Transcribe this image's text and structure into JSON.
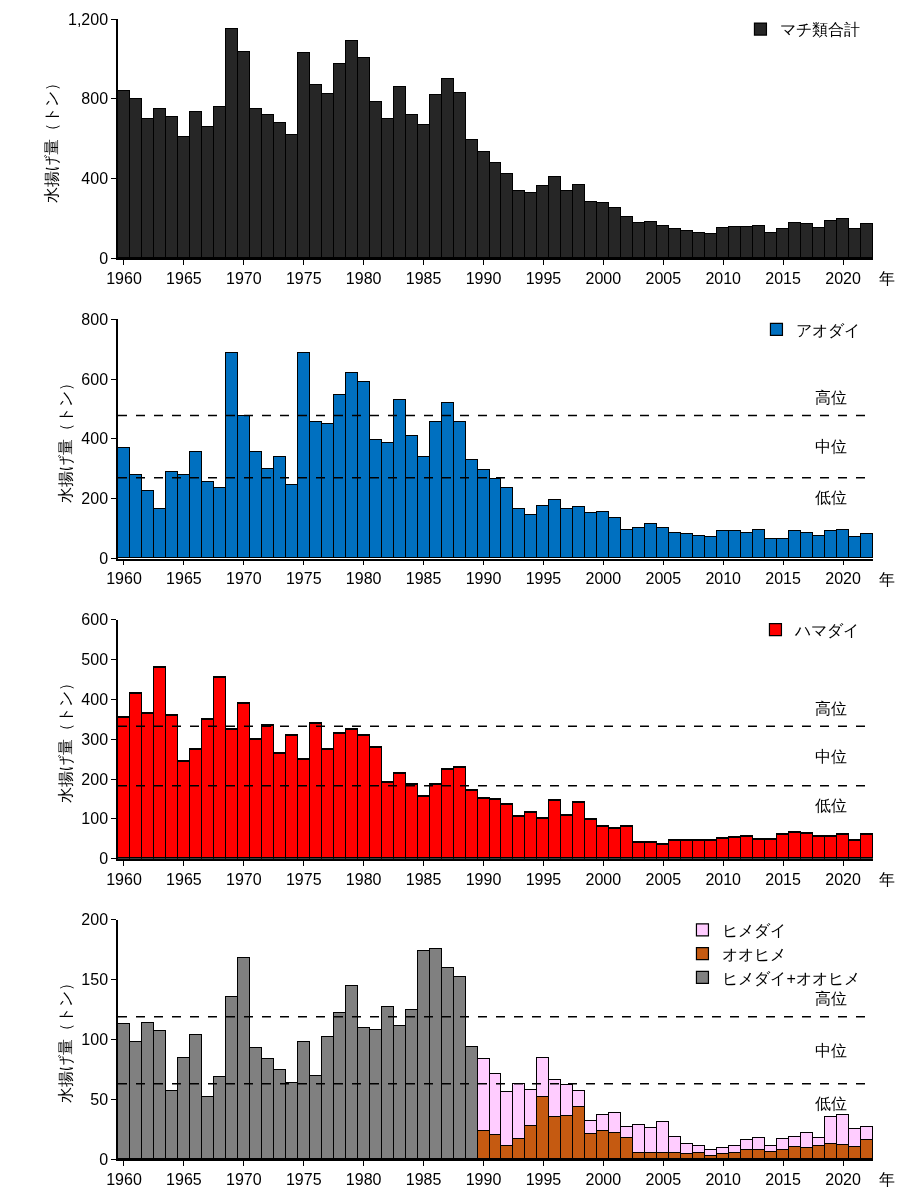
{
  "chart_data": [
    {
      "type": "bar",
      "ylabel": "水揚げ量（トン）",
      "xlabel": "年",
      "legend": "top right",
      "x": [
        1960,
        1961,
        1962,
        1963,
        1964,
        1965,
        1966,
        1967,
        1968,
        1969,
        1970,
        1971,
        1972,
        1973,
        1974,
        1975,
        1976,
        1977,
        1978,
        1979,
        1980,
        1981,
        1982,
        1983,
        1984,
        1985,
        1986,
        1987,
        1988,
        1989,
        1990,
        1991,
        1992,
        1993,
        1994,
        1995,
        1996,
        1997,
        1998,
        1999,
        2000,
        2001,
        2002,
        2003,
        2004,
        2005,
        2006,
        2007,
        2008,
        2009,
        2010,
        2011,
        2012,
        2013,
        2014,
        2015,
        2016,
        2017,
        2018,
        2019,
        2020,
        2021,
        2022
      ],
      "xlim": [
        1959.5,
        2022.5
      ],
      "xticks": [
        1960,
        1965,
        1970,
        1975,
        1980,
        1985,
        1990,
        1995,
        2000,
        2005,
        2010,
        2015,
        2020
      ],
      "ylim": [
        0,
        1200
      ],
      "yticks": [
        0,
        400,
        800,
        {
          "value": 1200,
          "label": "1,200"
        }
      ],
      "series": [
        {
          "name": "マチ類合計",
          "color": "#262626",
          "values": [
            840,
            800,
            700,
            750,
            710,
            610,
            735,
            660,
            760,
            1150,
            1035,
            750,
            720,
            680,
            620,
            1030,
            870,
            825,
            975,
            1090,
            1005,
            785,
            700,
            860,
            720,
            670,
            820,
            900,
            830,
            595,
            535,
            480,
            425,
            335,
            325,
            360,
            410,
            335,
            365,
            280,
            275,
            250,
            205,
            175,
            180,
            160,
            145,
            135,
            125,
            120,
            150,
            155,
            155,
            160,
            125,
            145,
            175,
            170,
            150,
            185,
            195,
            145,
            170
          ]
        }
      ]
    },
    {
      "type": "bar",
      "ylabel": "水揚げ量（トン）",
      "xlabel": "年",
      "legend": "top right",
      "x": [
        1960,
        1961,
        1962,
        1963,
        1964,
        1965,
        1966,
        1967,
        1968,
        1969,
        1970,
        1971,
        1972,
        1973,
        1974,
        1975,
        1976,
        1977,
        1978,
        1979,
        1980,
        1981,
        1982,
        1983,
        1984,
        1985,
        1986,
        1987,
        1988,
        1989,
        1990,
        1991,
        1992,
        1993,
        1994,
        1995,
        1996,
        1997,
        1998,
        1999,
        2000,
        2001,
        2002,
        2003,
        2004,
        2005,
        2006,
        2007,
        2008,
        2009,
        2010,
        2011,
        2012,
        2013,
        2014,
        2015,
        2016,
        2017,
        2018,
        2019,
        2020,
        2021,
        2022
      ],
      "xlim": [
        1959.5,
        2022.5
      ],
      "xticks": [
        1960,
        1965,
        1970,
        1975,
        1980,
        1985,
        1990,
        1995,
        2000,
        2005,
        2010,
        2015,
        2020
      ],
      "ylim": [
        0,
        800
      ],
      "yticks": [
        0,
        200,
        400,
        600,
        800
      ],
      "series": [
        {
          "name": "アオダイ",
          "color": "#0070c0",
          "values": [
            370,
            280,
            225,
            165,
            290,
            280,
            355,
            255,
            235,
            685,
            475,
            355,
            300,
            340,
            245,
            685,
            455,
            450,
            545,
            620,
            590,
            395,
            385,
            530,
            410,
            340,
            455,
            520,
            455,
            330,
            295,
            265,
            235,
            165,
            145,
            175,
            195,
            165,
            170,
            150,
            155,
            135,
            95,
            100,
            115,
            100,
            85,
            80,
            75,
            70,
            90,
            90,
            85,
            95,
            65,
            65,
            90,
            85,
            75,
            90,
            95,
            70,
            80
          ]
        }
      ],
      "ref_lines": [
        {
          "axis": "y",
          "value": 478,
          "color": "#000000",
          "line_style": "dashed"
        },
        {
          "axis": "y",
          "value": 270,
          "color": "#000000",
          "line_style": "dashed"
        }
      ],
      "annotations": [
        "高位",
        "中位",
        "低位"
      ]
    },
    {
      "type": "bar",
      "ylabel": "水揚げ量（トン）",
      "xlabel": "年",
      "legend": "top right",
      "x": [
        1960,
        1961,
        1962,
        1963,
        1964,
        1965,
        1966,
        1967,
        1968,
        1969,
        1970,
        1971,
        1972,
        1973,
        1974,
        1975,
        1976,
        1977,
        1978,
        1979,
        1980,
        1981,
        1982,
        1983,
        1984,
        1985,
        1986,
        1987,
        1988,
        1989,
        1990,
        1991,
        1992,
        1993,
        1994,
        1995,
        1996,
        1997,
        1998,
        1999,
        2000,
        2001,
        2002,
        2003,
        2004,
        2005,
        2006,
        2007,
        2008,
        2009,
        2010,
        2011,
        2012,
        2013,
        2014,
        2015,
        2016,
        2017,
        2018,
        2019,
        2020,
        2021,
        2022
      ],
      "xlim": [
        1959.5,
        2022.5
      ],
      "xticks": [
        1960,
        1965,
        1970,
        1975,
        1980,
        1985,
        1990,
        1995,
        2000,
        2005,
        2010,
        2015,
        2020
      ],
      "ylim": [
        0,
        600
      ],
      "yticks": [
        0,
        100,
        200,
        300,
        400,
        500,
        600
      ],
      "series": [
        {
          "name": "ハマダイ",
          "color": "#ff0000",
          "values": [
            355,
            415,
            365,
            480,
            360,
            245,
            275,
            350,
            455,
            325,
            390,
            300,
            335,
            265,
            310,
            250,
            340,
            275,
            315,
            325,
            310,
            280,
            190,
            215,
            185,
            155,
            185,
            225,
            228,
            170,
            150,
            148,
            135,
            105,
            115,
            100,
            145,
            108,
            140,
            98,
            82,
            77,
            82,
            42,
            42,
            35,
            45,
            45,
            45,
            47,
            52,
            54,
            55,
            48,
            48,
            60,
            66,
            64,
            57,
            55,
            60,
            47,
            60
          ]
        }
      ],
      "ref_lines": [
        {
          "axis": "y",
          "value": 332,
          "color": "#000000",
          "line_style": "dashed"
        },
        {
          "axis": "y",
          "value": 183,
          "color": "#000000",
          "line_style": "dashed"
        }
      ],
      "annotations": [
        "高位",
        "中位",
        "低位"
      ]
    },
    {
      "type": "bar",
      "stacked": true,
      "ylabel": "水揚げ量（トン）",
      "xlabel": "年",
      "legend": "top right",
      "x": [
        1960,
        1961,
        1962,
        1963,
        1964,
        1965,
        1966,
        1967,
        1968,
        1969,
        1970,
        1971,
        1972,
        1973,
        1974,
        1975,
        1976,
        1977,
        1978,
        1979,
        1980,
        1981,
        1982,
        1983,
        1984,
        1985,
        1986,
        1987,
        1988,
        1989,
        1990,
        1991,
        1992,
        1993,
        1994,
        1995,
        1996,
        1997,
        1998,
        1999,
        2000,
        2001,
        2002,
        2003,
        2004,
        2005,
        2006,
        2007,
        2008,
        2009,
        2010,
        2011,
        2012,
        2013,
        2014,
        2015,
        2016,
        2017,
        2018,
        2019,
        2020,
        2021,
        2022
      ],
      "xlim": [
        1959.5,
        2022.5
      ],
      "xticks": [
        1960,
        1965,
        1970,
        1975,
        1980,
        1985,
        1990,
        1995,
        2000,
        2005,
        2010,
        2015,
        2020
      ],
      "ylim": [
        0,
        200
      ],
      "yticks": [
        0,
        50,
        100,
        150,
        200
      ],
      "series": [
        {
          "name": "ヒメダイ+オオヒメ",
          "color": "#808080",
          "values": [
            113,
            98,
            114,
            107,
            57,
            85,
            104,
            52,
            69,
            136,
            168,
            93,
            84,
            75,
            64,
            98,
            70,
            102,
            122,
            145,
            110,
            108,
            127,
            111,
            125,
            174,
            176,
            160,
            152,
            94,
            null,
            null,
            null,
            null,
            null,
            null,
            null,
            null,
            null,
            null,
            null,
            null,
            null,
            null,
            null,
            null,
            null,
            null,
            null,
            null,
            null,
            null,
            null,
            null,
            null,
            null,
            null,
            null,
            null,
            null,
            null,
            null,
            null
          ]
        },
        {
          "name": "オオヒメ",
          "color": "#c55a11",
          "values": [
            null,
            null,
            null,
            null,
            null,
            null,
            null,
            null,
            null,
            null,
            null,
            null,
            null,
            null,
            null,
            null,
            null,
            null,
            null,
            null,
            null,
            null,
            null,
            null,
            null,
            null,
            null,
            null,
            null,
            null,
            24,
            20,
            11,
            17,
            28,
            52,
            35,
            36,
            44,
            21,
            24,
            22,
            18,
            5,
            5,
            5,
            5,
            4,
            5,
            3,
            4,
            5,
            8,
            8,
            6,
            8,
            10,
            9,
            11,
            13,
            12,
            10,
            16
          ]
        },
        {
          "name": "ヒメダイ",
          "color": "#ffccff",
          "values": [
            null,
            null,
            null,
            null,
            null,
            null,
            null,
            null,
            null,
            null,
            null,
            null,
            null,
            null,
            null,
            null,
            null,
            null,
            null,
            null,
            null,
            null,
            null,
            null,
            null,
            null,
            null,
            null,
            null,
            null,
            60,
            51,
            45,
            46,
            30,
            33,
            31,
            26,
            13,
            11,
            13,
            17,
            9,
            24,
            21,
            26,
            14,
            9,
            6,
            5,
            5,
            6,
            8,
            10,
            5,
            9,
            9,
            13,
            7,
            22,
            25,
            15,
            11
          ]
        }
      ],
      "ref_lines": [
        {
          "axis": "y",
          "value": 119,
          "color": "#000000",
          "line_style": "dashed"
        },
        {
          "axis": "y",
          "value": 63,
          "color": "#000000",
          "line_style": "dashed"
        }
      ],
      "annotations": [
        "高位",
        "中位",
        "低位"
      ]
    }
  ]
}
